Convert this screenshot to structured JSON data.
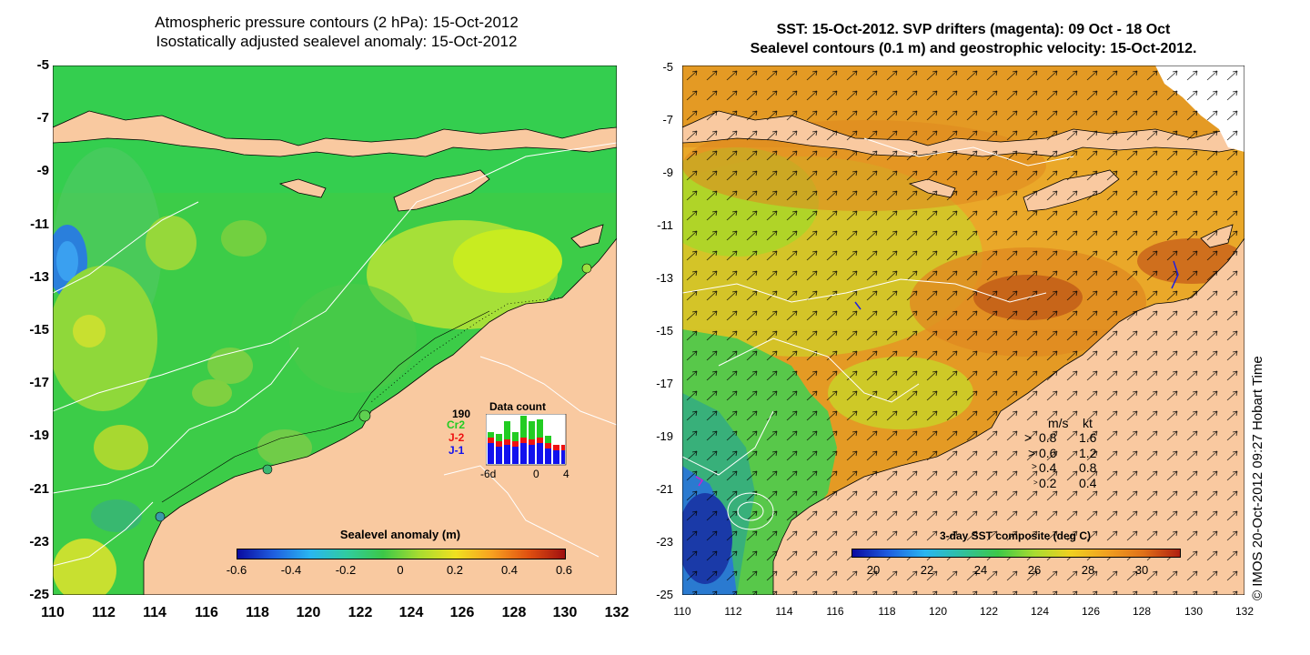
{
  "left_panel": {
    "title_line1": "Atmospheric pressure contours (2 hPa): 15-Oct-2012",
    "title_line2": "Isostatically adjusted sealevel anomaly: 15-Oct-2012",
    "y_ticks": [
      "-5",
      "-7",
      "-9",
      "-11",
      "-13",
      "-15",
      "-17",
      "-19",
      "-21",
      "-23",
      "-25"
    ],
    "x_ticks": [
      "110",
      "112",
      "114",
      "116",
      "118",
      "120",
      "122",
      "124",
      "126",
      "128",
      "130",
      "132"
    ],
    "colorbar_title": "Sealevel anomaly (m)",
    "colorbar_ticks": [
      "-0.6",
      "-0.4",
      "-0.2",
      "0",
      "0.2",
      "0.4",
      "0.6"
    ],
    "data_count": {
      "title": "Data count",
      "max_label": "190",
      "series": [
        {
          "name": "Cr2",
          "color": "#22cc22"
        },
        {
          "name": "J-2",
          "color": "#ee1111"
        },
        {
          "name": "J-1",
          "color": "#1111ee"
        }
      ],
      "x_ticks": [
        "-6d",
        "0",
        "4"
      ]
    }
  },
  "right_panel": {
    "title_line1": "SST: 15-Oct-2012. SVP drifters (magenta): 09 Oct - 18 Oct",
    "title_line2": "Sealevel contours (0.1 m) and geostrophic velocity: 15-Oct-2012.",
    "y_ticks": [
      "-5",
      "-7",
      "-9",
      "-11",
      "-13",
      "-15",
      "-17",
      "-19",
      "-21",
      "-23",
      "-25"
    ],
    "x_ticks": [
      "110",
      "112",
      "114",
      "116",
      "118",
      "120",
      "122",
      "124",
      "126",
      "128",
      "130",
      "132"
    ],
    "colorbar_title": "3-day SST composite (deg C)",
    "colorbar_ticks": [
      "20",
      "22",
      "24",
      "26",
      "28",
      "30"
    ],
    "speed_legend": {
      "header_ms": "m/s",
      "header_kt": "kt",
      "rows": [
        {
          "ms": "0.8",
          "kt": "1.6"
        },
        {
          "ms": "0.6",
          "kt": "1.2"
        },
        {
          "ms": "0.4",
          "kt": "0.8"
        },
        {
          "ms": "0.2",
          "kt": "0.4"
        }
      ]
    }
  },
  "credit": "© IMOS 20-Oct-2012 09:27 Hobart Time",
  "colors": {
    "land": "#f9c9a0",
    "ocean_left": "#33cc44",
    "ocean_right_warm": "#e89a20",
    "ocean_right_mid": "#b8d820"
  }
}
